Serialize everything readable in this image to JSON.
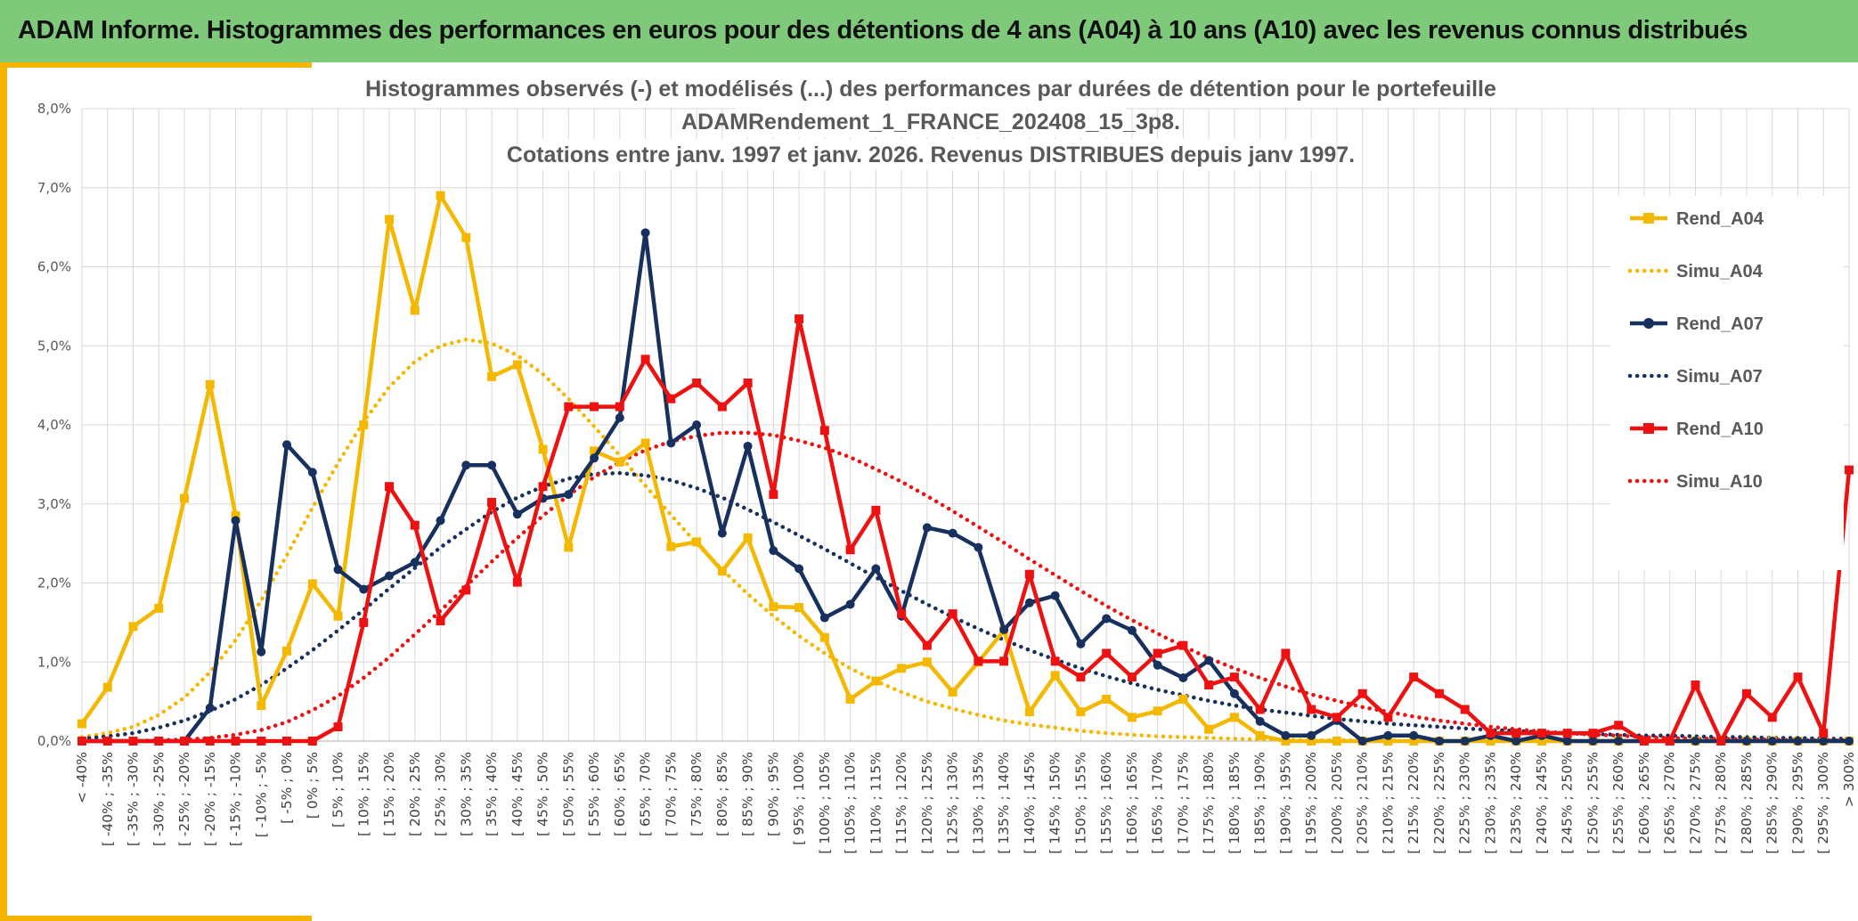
{
  "header": {
    "title": "ADAM Informe. Histogrammes des performances en euros pour des détentions de 4 ans (A04) à 10 ans (A10) avec les revenus connus distribués"
  },
  "colors": {
    "banner": "#7fc97a",
    "accent": "#f5b400",
    "a04": "#f5b800",
    "a07": "#17305e",
    "a10": "#ee1111"
  },
  "chart_data": {
    "type": "line",
    "title": [
      "Histogrammes observés (-) et modélisés (...) des performances par durées de détention pour le portefeuille",
      "ADAMRendement_1_FRANCE_202408_15_3p8.",
      "Cotations entre janv. 1997 et janv. 2026. Revenus DISTRIBUES depuis janv 1997."
    ],
    "ylim": [
      0,
      8
    ],
    "yticks": [
      "0,0%",
      "1,0%",
      "2,0%",
      "3,0%",
      "4,0%",
      "5,0%",
      "6,0%",
      "7,0%",
      "8,0%"
    ],
    "categories": [
      "< -40%",
      "[ -40% ; -35%",
      "[ -35% ; -30%",
      "[ -30% ; -25%",
      "[ -25% ; -20%",
      "[ -20% ; -15%",
      "[ -15% ; -10%",
      "[ -10% ; -5%",
      "[ -5% ; 0%",
      "[ 0% ; 5%",
      "[ 5% ; 10%",
      "[ 10% ; 15%",
      "[ 15% ; 20%",
      "[ 20% ; 25%",
      "[ 25% ; 30%",
      "[ 30% ; 35%",
      "[ 35% ; 40%",
      "[ 40% ; 45%",
      "[ 45% ; 50%",
      "[ 50% ; 55%",
      "[ 55% ; 60%",
      "[ 60% ; 65%",
      "[ 65% ; 70%",
      "[ 70% ; 75%",
      "[ 75% ; 80%",
      "[ 80% ; 85%",
      "[ 85% ; 90%",
      "[ 90% ; 95%",
      "[ 95% ; 100%",
      "[ 100% ; 105%",
      "[ 105% ; 110%",
      "[ 110% ; 115%",
      "[ 115% ; 120%",
      "[ 120% ; 125%",
      "[ 125% ; 130%",
      "[ 130% ; 135%",
      "[ 135% ; 140%",
      "[ 140% ; 145%",
      "[ 145% ; 150%",
      "[ 150% ; 155%",
      "[ 155% ; 160%",
      "[ 160% ; 165%",
      "[ 165% ; 170%",
      "[ 170% ; 175%",
      "[ 175% ; 180%",
      "[ 180% ; 185%",
      "[ 185% ; 190%",
      "[ 190% ; 195%",
      "[ 195% ; 200%",
      "[ 200% ; 205%",
      "[ 205% ; 210%",
      "[ 210% ; 215%",
      "[ 215% ; 220%",
      "[ 220% ; 225%",
      "[ 225% ; 230%",
      "[ 230% ; 235%",
      "[ 235% ; 240%",
      "[ 240% ; 245%",
      "[ 245% ; 250%",
      "[ 250% ; 255%",
      "[ 255% ; 260%",
      "[ 260% ; 265%",
      "[ 265% ; 270%",
      "[ 270% ; 275%",
      "[ 275% ; 280%",
      "[ 280% ; 285%",
      "[ 285% ; 290%",
      "[ 290% ; 295%",
      "[ 295% ; 300%",
      "> 300%"
    ],
    "series": [
      {
        "name": "Rend_A04",
        "style": "solid-square",
        "color": "#f5b800",
        "values": [
          0.22,
          0.68,
          1.45,
          1.68,
          3.07,
          4.51,
          2.85,
          0.45,
          1.14,
          1.99,
          1.58,
          4.0,
          6.6,
          5.45,
          6.9,
          6.37,
          4.61,
          4.76,
          3.69,
          2.45,
          3.67,
          3.53,
          3.77,
          2.46,
          2.52,
          2.15,
          2.57,
          1.7,
          1.69,
          1.31,
          0.53,
          0.76,
          0.92,
          1.0,
          0.62,
          1.0,
          1.4,
          0.37,
          0.83,
          0.37,
          0.53,
          0.3,
          0.38,
          0.53,
          0.15,
          0.3,
          0.07,
          0.0,
          0.0,
          0.0,
          0.0,
          0.0,
          0.0,
          0.0,
          0.0,
          0.0,
          0.0,
          0.0,
          0.0,
          0.0,
          0.0,
          0.0,
          0.0,
          0.0,
          0.0,
          0.0,
          0.0,
          0.0,
          0.0,
          0.0
        ]
      },
      {
        "name": "Simu_A04",
        "style": "dotted",
        "color": "#f5b800",
        "values": [
          0.05,
          0.1,
          0.18,
          0.33,
          0.55,
          0.87,
          1.28,
          1.78,
          2.35,
          2.95,
          3.52,
          4.04,
          4.48,
          4.8,
          5.0,
          5.08,
          5.03,
          4.88,
          4.64,
          4.33,
          3.98,
          3.61,
          3.23,
          2.86,
          2.5,
          2.17,
          1.86,
          1.58,
          1.33,
          1.11,
          0.92,
          0.76,
          0.62,
          0.5,
          0.41,
          0.33,
          0.26,
          0.21,
          0.17,
          0.13,
          0.1,
          0.08,
          0.06,
          0.05,
          0.04,
          0.03,
          0.02,
          0.02,
          0.01,
          0.01,
          0.01,
          0.01,
          0.0,
          0.0,
          0.0,
          0.0,
          0.0,
          0.0,
          0.0,
          0.0,
          0.0,
          0.0,
          0.0,
          0.0,
          0.0,
          0.0,
          0.0,
          0.0,
          0.0,
          0.0
        ]
      },
      {
        "name": "Rend_A07",
        "style": "solid-circle",
        "color": "#17305e",
        "values": [
          0.0,
          0.0,
          0.0,
          0.0,
          0.0,
          0.42,
          2.79,
          1.13,
          3.75,
          3.4,
          2.17,
          1.92,
          2.09,
          2.26,
          2.79,
          3.49,
          3.49,
          2.87,
          3.07,
          3.12,
          3.58,
          4.09,
          6.43,
          3.77,
          4.0,
          2.63,
          3.73,
          2.41,
          2.18,
          1.56,
          1.73,
          2.18,
          1.58,
          2.7,
          2.63,
          2.45,
          1.41,
          1.75,
          1.84,
          1.23,
          1.55,
          1.4,
          0.96,
          0.8,
          1.02,
          0.6,
          0.25,
          0.07,
          0.07,
          0.26,
          0.0,
          0.07,
          0.07,
          0.0,
          0.0,
          0.07,
          0.0,
          0.07,
          0.0,
          0.0,
          0.0,
          0.0,
          0.0,
          0.0,
          0.0,
          0.0,
          0.0,
          0.0,
          0.0,
          0.0
        ]
      },
      {
        "name": "Simu_A07",
        "style": "dotted",
        "color": "#17305e",
        "values": [
          0.03,
          0.06,
          0.1,
          0.17,
          0.26,
          0.38,
          0.53,
          0.71,
          0.92,
          1.15,
          1.4,
          1.66,
          1.93,
          2.19,
          2.45,
          2.68,
          2.9,
          3.08,
          3.22,
          3.32,
          3.38,
          3.39,
          3.36,
          3.3,
          3.2,
          3.08,
          2.93,
          2.77,
          2.6,
          2.43,
          2.25,
          2.07,
          1.9,
          1.73,
          1.57,
          1.42,
          1.28,
          1.15,
          1.03,
          0.92,
          0.82,
          0.73,
          0.65,
          0.58,
          0.51,
          0.45,
          0.4,
          0.36,
          0.32,
          0.28,
          0.25,
          0.22,
          0.2,
          0.18,
          0.16,
          0.14,
          0.13,
          0.11,
          0.1,
          0.09,
          0.08,
          0.07,
          0.07,
          0.06,
          0.05,
          0.05,
          0.04,
          0.04,
          0.03,
          0.03
        ]
      },
      {
        "name": "Rend_A10",
        "style": "solid-square",
        "color": "#ee1111",
        "values": [
          0.0,
          0.0,
          0.0,
          0.0,
          0.0,
          0.0,
          0.0,
          0.0,
          0.0,
          0.0,
          0.18,
          1.5,
          3.22,
          2.73,
          1.52,
          1.91,
          3.02,
          2.01,
          3.22,
          4.23,
          4.23,
          4.23,
          4.83,
          4.33,
          4.53,
          4.23,
          4.53,
          3.12,
          5.34,
          3.93,
          2.42,
          2.92,
          1.61,
          1.21,
          1.61,
          1.01,
          1.01,
          2.11,
          1.01,
          0.81,
          1.11,
          0.81,
          1.11,
          1.21,
          0.71,
          0.81,
          0.4,
          1.11,
          0.4,
          0.3,
          0.6,
          0.3,
          0.81,
          0.6,
          0.4,
          0.1,
          0.1,
          0.1,
          0.1,
          0.1,
          0.2,
          0.0,
          0.0,
          0.71,
          0.0,
          0.6,
          0.3,
          0.81,
          0.1,
          3.43
        ]
      },
      {
        "name": "Simu_A10",
        "style": "dotted",
        "color": "#ee1111",
        "values": [
          0.0,
          0.0,
          0.0,
          0.01,
          0.02,
          0.04,
          0.08,
          0.14,
          0.24,
          0.39,
          0.57,
          0.8,
          1.06,
          1.35,
          1.65,
          1.96,
          2.27,
          2.57,
          2.85,
          3.11,
          3.34,
          3.53,
          3.68,
          3.79,
          3.86,
          3.9,
          3.9,
          3.87,
          3.8,
          3.71,
          3.59,
          3.44,
          3.28,
          3.1,
          2.91,
          2.71,
          2.51,
          2.3,
          2.1,
          1.9,
          1.71,
          1.53,
          1.36,
          1.2,
          1.05,
          0.92,
          0.8,
          0.69,
          0.59,
          0.51,
          0.43,
          0.37,
          0.31,
          0.26,
          0.22,
          0.18,
          0.15,
          0.12,
          0.1,
          0.08,
          0.07,
          0.05,
          0.04,
          0.03,
          0.03,
          0.02,
          0.02,
          0.01,
          0.01,
          0.01
        ]
      }
    ],
    "legend": [
      "Rend_A04",
      "Simu_A04",
      "Rend_A07",
      "Simu_A07",
      "Rend_A10",
      "Simu_A10"
    ],
    "legend_position": "right",
    "grid": true
  }
}
